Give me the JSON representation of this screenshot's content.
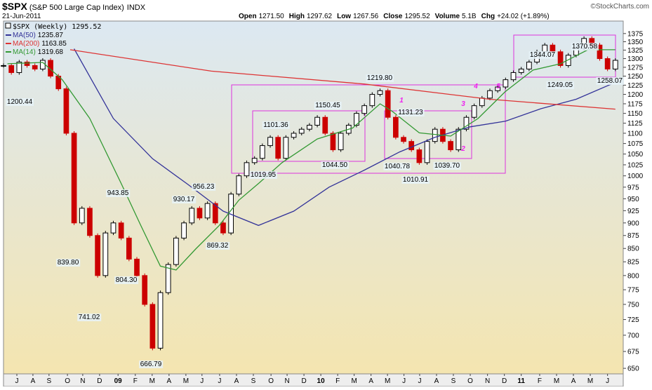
{
  "chart_data": {
    "type": "candlestick",
    "symbol": "$SPX",
    "name": "(S&P 500 Large Cap Index)",
    "exchange": "INDX",
    "date": "21-Jun-2011",
    "copyright": "©StockCharts.com",
    "quote": [
      {
        "label": "Open",
        "value": "1271.50"
      },
      {
        "label": "High",
        "value": "1297.62"
      },
      {
        "label": "Low",
        "value": "1267.56"
      },
      {
        "label": "Close",
        "value": "1295.52"
      },
      {
        "label": "Volume",
        "value": "5.1B"
      },
      {
        "label": "Chg",
        "value": "+24.02 (+1.89%)"
      }
    ],
    "price_legend": "$SPX (Weekly) 1295.52",
    "up_color": "#ffffff",
    "down_color": "#cc0000",
    "x": [
      0,
      2,
      4,
      6,
      8,
      10,
      12,
      14,
      16,
      18,
      20,
      22,
      24,
      26,
      28,
      30,
      32,
      34,
      36,
      38,
      40,
      42,
      44,
      46,
      48,
      50,
      52,
      54,
      56,
      58,
      60,
      62,
      64,
      66,
      68,
      70,
      72,
      74,
      76,
      78,
      80,
      82,
      84,
      86,
      88,
      90,
      92,
      94,
      96,
      98,
      100,
      102,
      104,
      106,
      108,
      110,
      112,
      114,
      116,
      118,
      120,
      122,
      124,
      126,
      128,
      130,
      132,
      134,
      136,
      138,
      140,
      142,
      144,
      146,
      148,
      150,
      152,
      154,
      156
    ],
    "values": [
      1280,
      1260,
      1290,
      1280,
      1270,
      1295,
      1250,
      1215,
      1100,
      900,
      930,
      875,
      800,
      880,
      900,
      870,
      830,
      800,
      750,
      680,
      770,
      820,
      870,
      900,
      930,
      910,
      940,
      900,
      880,
      960,
      1000,
      1030,
      1040,
      1070,
      1090,
      1040,
      1090,
      1100,
      1110,
      1120,
      1140,
      1100,
      1060,
      1100,
      1120,
      1150,
      1170,
      1200,
      1210,
      1140,
      1090,
      1080,
      1060,
      1030,
      1080,
      1110,
      1080,
      1060,
      1110,
      1140,
      1170,
      1190,
      1210,
      1220,
      1240,
      1260,
      1270,
      1290,
      1320,
      1340,
      1320,
      1280,
      1310,
      1330,
      1360,
      1340,
      1300,
      1270,
      1295
    ],
    "series": [
      {
        "name": "MA(50)",
        "last": "1235.87",
        "color": "#333399",
        "x": [
          18,
          28,
          38,
          47,
          56,
          65,
          74,
          83,
          92,
          101,
          110,
          119,
          128,
          137,
          146,
          155
        ],
        "values": [
          1329,
          1137,
          1039,
          981,
          924,
          895,
          924,
          975,
          1013,
          1055,
          1090,
          1116,
          1130,
          1162,
          1187,
          1228
        ]
      },
      {
        "name": "MA(200)",
        "last": "1163.85",
        "color": "#dd3333",
        "x": [
          17,
          53,
          92,
          124,
          156
        ],
        "values": [
          1326,
          1264,
          1228,
          1187,
          1161
        ]
      },
      {
        "name": "MA(14)",
        "last": "1319.68",
        "color": "#339933",
        "x": [
          1,
          10,
          15,
          22,
          30,
          35,
          40,
          44,
          49,
          55,
          60,
          65,
          71,
          80,
          89,
          96,
          99,
          106,
          114,
          121,
          128,
          135,
          142,
          149,
          156
        ],
        "values": [
          1285,
          1289,
          1240,
          1137,
          983,
          895,
          817,
          810,
          849,
          895,
          947,
          983,
          1030,
          1086,
          1113,
          1175,
          1156,
          1101,
          1093,
          1137,
          1208,
          1267,
          1285,
          1326,
          1326
        ]
      }
    ],
    "xlim": [
      0,
      158
    ],
    "xticks": [
      {
        "value": 3.4,
        "label": "J"
      },
      {
        "value": 7.5,
        "label": "A"
      },
      {
        "value": 11.6,
        "label": "S"
      },
      {
        "value": 16.3,
        "label": "O"
      },
      {
        "value": 20.2,
        "label": "N"
      },
      {
        "value": 24.5,
        "label": "D"
      },
      {
        "value": 29.2,
        "label": "09"
      },
      {
        "value": 33.6,
        "label": "F"
      },
      {
        "value": 37.9,
        "label": "M"
      },
      {
        "value": 42.2,
        "label": "A"
      },
      {
        "value": 46.5,
        "label": "M"
      },
      {
        "value": 50.6,
        "label": "J"
      },
      {
        "value": 55.1,
        "label": "J"
      },
      {
        "value": 59.4,
        "label": "A"
      },
      {
        "value": 63.7,
        "label": "S"
      },
      {
        "value": 68.2,
        "label": "O"
      },
      {
        "value": 72.3,
        "label": "N"
      },
      {
        "value": 76.6,
        "label": "D"
      },
      {
        "value": 80.9,
        "label": "10"
      },
      {
        "value": 85.2,
        "label": "F"
      },
      {
        "value": 89.4,
        "label": "M"
      },
      {
        "value": 93.7,
        "label": "A"
      },
      {
        "value": 97.9,
        "label": "M"
      },
      {
        "value": 102.1,
        "label": "J"
      },
      {
        "value": 106.1,
        "label": "J"
      },
      {
        "value": 110.4,
        "label": "A"
      },
      {
        "value": 114.7,
        "label": "S"
      },
      {
        "value": 119.0,
        "label": "O"
      },
      {
        "value": 123.4,
        "label": "N"
      },
      {
        "value": 127.7,
        "label": "D"
      },
      {
        "value": 132.0,
        "label": "11"
      },
      {
        "value": 136.7,
        "label": "F"
      },
      {
        "value": 141.0,
        "label": "M"
      },
      {
        "value": 145.3,
        "label": "A"
      },
      {
        "value": 149.6,
        "label": "M"
      },
      {
        "value": 154.0,
        "label": "J"
      }
    ],
    "ylim": [
      642,
      1414
    ],
    "log_scale": true,
    "grid": false,
    "yticks": [
      650,
      675,
      700,
      725,
      750,
      775,
      800,
      825,
      850,
      875,
      900,
      925,
      950,
      975,
      1000,
      1025,
      1050,
      1075,
      1100,
      1125,
      1150,
      1175,
      1200,
      1225,
      1250,
      1275,
      1300,
      1325,
      1350,
      1375
    ],
    "annotations": [
      "1200.44",
      "839.80",
      "741.02",
      "943.85",
      "804.30",
      "666.79",
      "930.17",
      "956.23",
      "869.32",
      "1019.95",
      "1101.36",
      "1044.50",
      "1150.45",
      "1219.80",
      "1131.23",
      "1040.78",
      "1010.91",
      "1039.70",
      "1344.07",
      "1370.58",
      "1249.05",
      "1258.07"
    ],
    "wave_labels": [
      "1",
      "2",
      "3",
      "4",
      "5"
    ]
  }
}
